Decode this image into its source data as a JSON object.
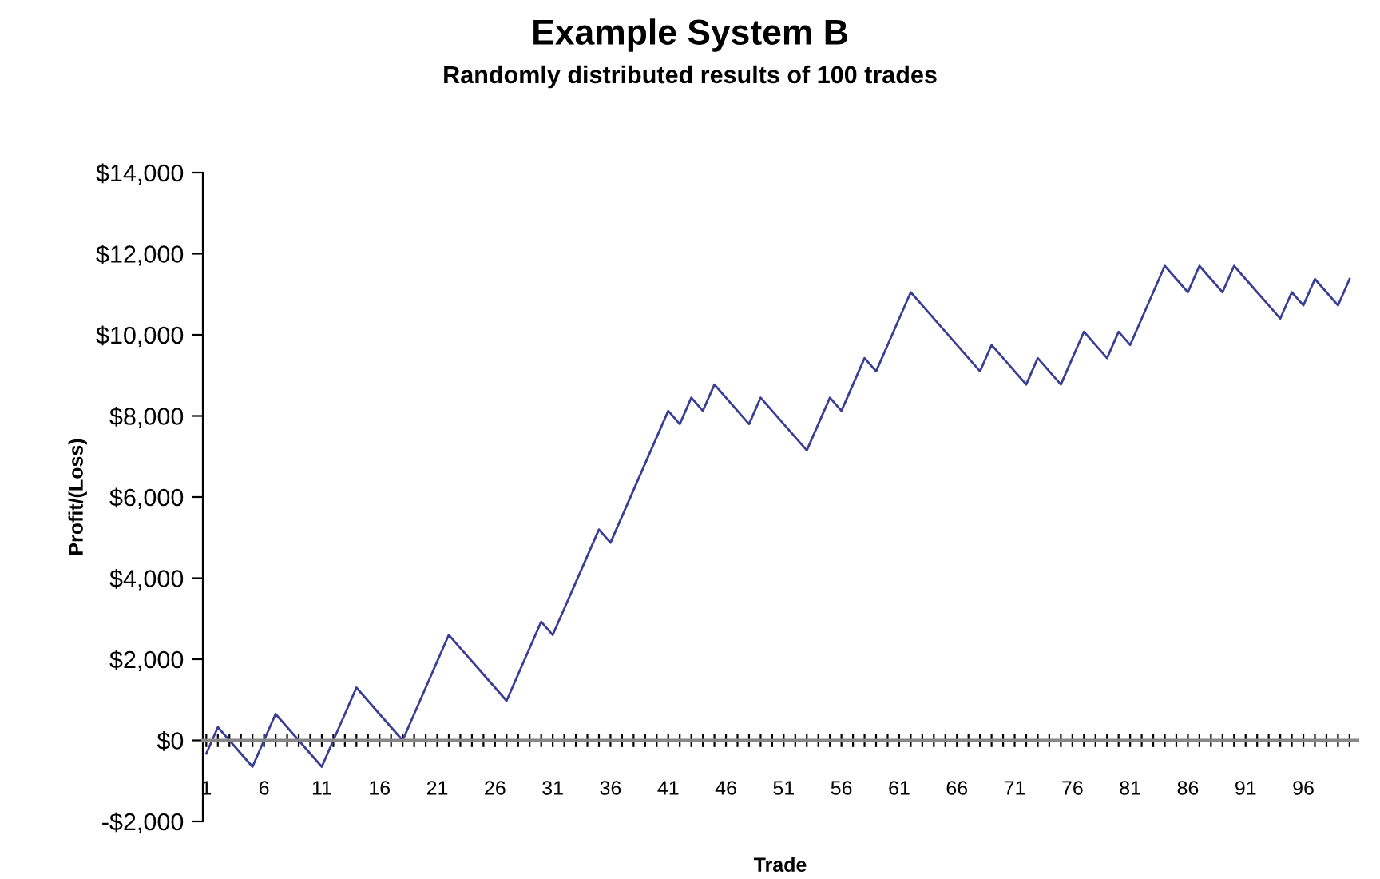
{
  "chart_data": {
    "type": "line",
    "title": "Example System B",
    "subtitle": "Randomly distributed results of 100 trades",
    "xlabel": "Trade",
    "ylabel": "Profit/(Loss)",
    "categories": [
      "1",
      null,
      null,
      null,
      null,
      "6",
      null,
      null,
      null,
      null,
      "11",
      null,
      null,
      null,
      null,
      "16",
      null,
      null,
      null,
      null,
      "21",
      null,
      null,
      null,
      null,
      "26",
      null,
      null,
      null,
      null,
      "31",
      null,
      null,
      null,
      null,
      "36",
      null,
      null,
      null,
      null,
      "41",
      null,
      null,
      null,
      null,
      "46",
      null,
      null,
      null,
      null,
      "51",
      null,
      null,
      null,
      null,
      "56",
      null,
      null,
      null,
      null,
      "61",
      null,
      null,
      null,
      null,
      "66",
      null,
      null,
      null,
      null,
      "71",
      null,
      null,
      null,
      null,
      "76",
      null,
      null,
      null,
      null,
      "81",
      null,
      null,
      null,
      null,
      "86",
      null,
      null,
      null,
      null,
      "91",
      null,
      null,
      null,
      null,
      "96",
      null,
      null,
      null,
      null
    ],
    "series": [
      {
        "color": "#3a3f94",
        "values": [
          -325,
          325,
          0,
          -325,
          -650,
          0,
          650,
          325,
          0,
          -325,
          -650,
          0,
          650,
          1300,
          975,
          650,
          325,
          0,
          650,
          1300,
          1950,
          2600,
          2275,
          1950,
          1625,
          1300,
          975,
          1625,
          2275,
          2925,
          2600,
          3250,
          3900,
          4550,
          5200,
          4875,
          5525,
          6175,
          6825,
          7475,
          8125,
          7800,
          8450,
          8125,
          8775,
          8450,
          8125,
          7800,
          8450,
          8125,
          7800,
          7475,
          7150,
          7800,
          8450,
          8125,
          8775,
          9425,
          9100,
          9750,
          10400,
          11050,
          10725,
          10400,
          10075,
          9750,
          9425,
          9100,
          9750,
          9425,
          9100,
          8775,
          9425,
          9100,
          8775,
          9425,
          10075,
          9750,
          9425,
          10075,
          9750,
          10400,
          11050,
          11700,
          11375,
          11050,
          11700,
          11375,
          11050,
          11700,
          11375,
          11050,
          10725,
          10400,
          11050,
          10725,
          11375,
          11050,
          10725,
          11375
        ]
      }
    ],
    "ylim": [
      -2000,
      14000
    ],
    "yticks": [
      {
        "value": -2000,
        "label": "-$2,000"
      },
      {
        "value": 0,
        "label": "$0"
      },
      {
        "value": 2000,
        "label": "$2,000"
      },
      {
        "value": 4000,
        "label": "$4,000"
      },
      {
        "value": 6000,
        "label": "$6,000"
      },
      {
        "value": 8000,
        "label": "$8,000"
      },
      {
        "value": 10000,
        "label": "$10,000"
      },
      {
        "value": 12000,
        "label": "$12,000"
      },
      {
        "value": 14000,
        "label": "$14,000"
      }
    ],
    "grid": false,
    "legend": false,
    "marker": "none",
    "line_style": "solid"
  }
}
